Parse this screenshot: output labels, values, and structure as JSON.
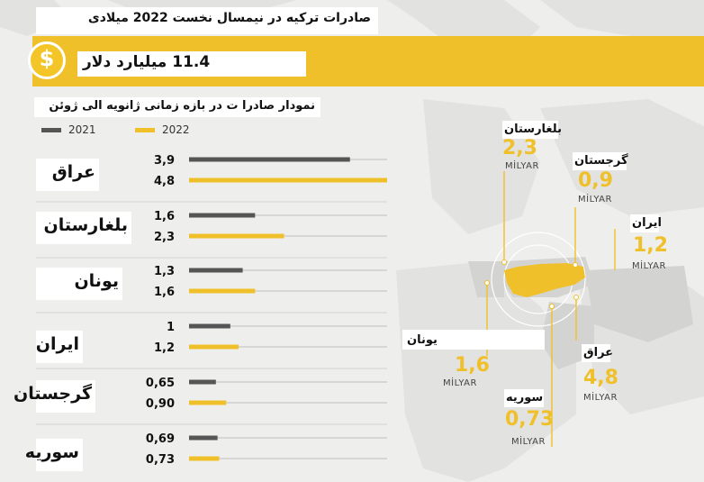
{
  "title": "صادرات ترکیه در نیمسال نخست 2022 میلادی",
  "headline_value": "11.4 میلیارد دلار",
  "coin_icon": "$",
  "subtitle": "نمودار صادرا ت در بازه زمانی ژانویه الی ژوئن",
  "colors": {
    "y2021": "#555555",
    "y2022": "#f0c02a",
    "accent": "#f0c02a"
  },
  "chart_data": {
    "type": "bar",
    "orientation": "horizontal",
    "categories": [
      "عراق",
      "بلغارستان",
      "یونان",
      "ایران",
      "گرجستان",
      "سوریه"
    ],
    "series": [
      {
        "name": "2021",
        "values": [
          3.9,
          1.6,
          1.3,
          1,
          0.65,
          0.69
        ],
        "labels": [
          "3,9",
          "1,6",
          "1,3",
          "1",
          "0,65",
          "0,69"
        ]
      },
      {
        "name": "2022",
        "values": [
          4.8,
          2.3,
          1.6,
          1.2,
          0.9,
          0.73
        ],
        "labels": [
          "4,8",
          "2,3",
          "1,6",
          "1,2",
          "0,90",
          "0,73"
        ]
      }
    ],
    "xlim": [
      0,
      4.8
    ],
    "legend_position": "top-left"
  },
  "map_labels": [
    {
      "country": "بلغارستان",
      "value": "2,3",
      "unit": "MİLYAR"
    },
    {
      "country": "گرجستان",
      "value": "0,9",
      "unit": "MİLYAR"
    },
    {
      "country": "ایران",
      "value": "1,2",
      "unit": "MİLYAR"
    },
    {
      "country": "یونان",
      "value": "1,6",
      "unit": "MİLYAR"
    },
    {
      "country": "عراق",
      "value": "4,8",
      "unit": "MİLYAR"
    },
    {
      "country": "سوریه",
      "value": "0,73",
      "unit": "MİLYAR"
    }
  ]
}
